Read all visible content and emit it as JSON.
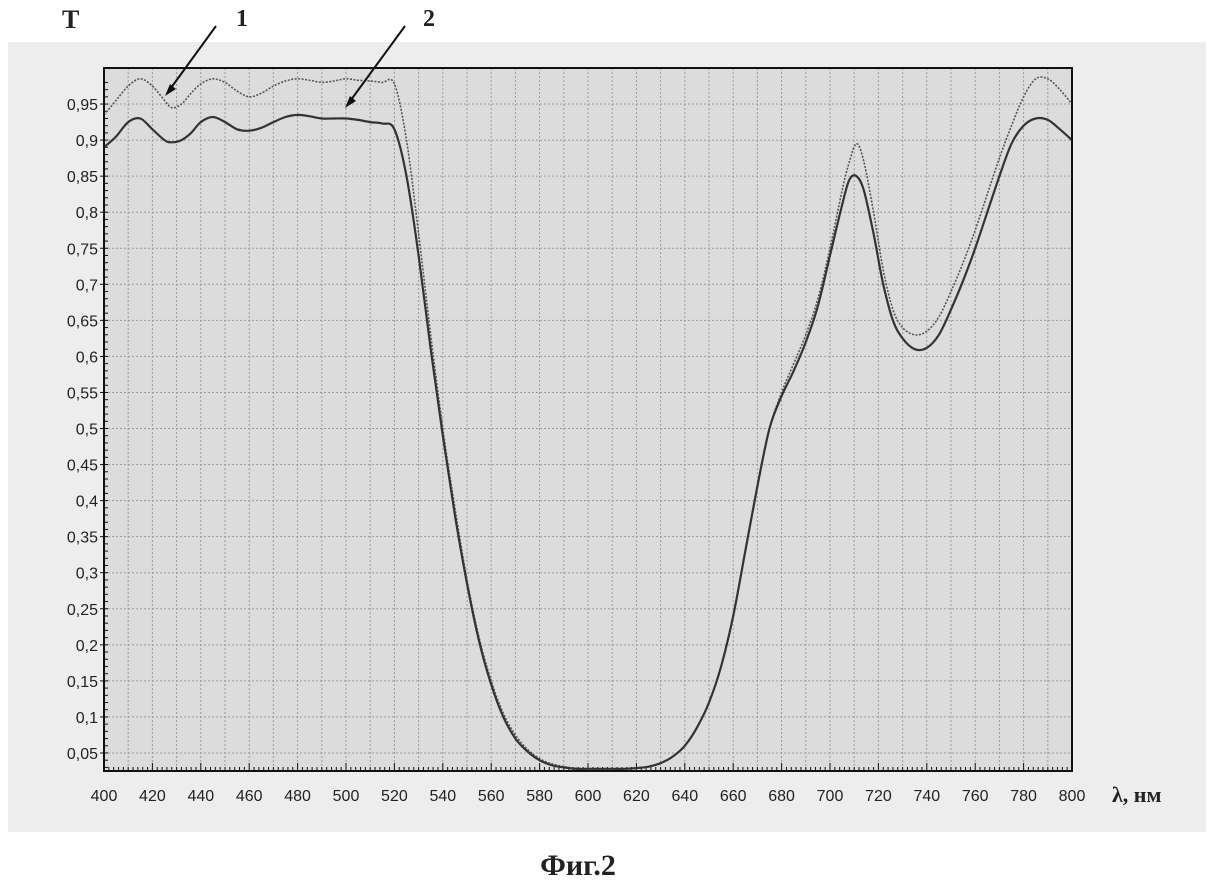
{
  "chart_data": {
    "type": "line",
    "ylabel": "T",
    "xlabel": "λ, нм",
    "caption": "Фиг.2",
    "xlim": [
      400,
      800
    ],
    "ylim": [
      0.025,
      1.0
    ],
    "xticks": [
      "400",
      "420",
      "440",
      "460",
      "480",
      "500",
      "520",
      "540",
      "560",
      "580",
      "600",
      "620",
      "640",
      "660",
      "680",
      "700",
      "720",
      "740",
      "760",
      "780",
      "800"
    ],
    "yticks": [
      "0,05",
      "0,1",
      "0,15",
      "0,2",
      "0,25",
      "0,3",
      "0,35",
      "0,4",
      "0,45",
      "0,5",
      "0,55",
      "0,6",
      "0,65",
      "0,7",
      "0,75",
      "0,8",
      "0,85",
      "0,9",
      "0,95"
    ],
    "grid": true,
    "series": [
      {
        "name": "1",
        "x": [
          400,
          405,
          410,
          415,
          420,
          425,
          428,
          432,
          436,
          440,
          445,
          450,
          455,
          460,
          465,
          470,
          475,
          480,
          485,
          490,
          495,
          500,
          505,
          510,
          515,
          520,
          525,
          530,
          535,
          540,
          545,
          550,
          555,
          560,
          565,
          570,
          575,
          580,
          585,
          590,
          595,
          600,
          605,
          610,
          615,
          620,
          625,
          630,
          635,
          640,
          645,
          650,
          655,
          660,
          665,
          670,
          675,
          680,
          685,
          690,
          695,
          700,
          705,
          708,
          711,
          714,
          718,
          722,
          726,
          730,
          735,
          740,
          745,
          750,
          755,
          760,
          765,
          770,
          775,
          780,
          785,
          790,
          795,
          800
        ],
        "y": [
          0.935,
          0.955,
          0.975,
          0.985,
          0.975,
          0.955,
          0.945,
          0.95,
          0.965,
          0.978,
          0.985,
          0.98,
          0.968,
          0.96,
          0.965,
          0.975,
          0.982,
          0.985,
          0.983,
          0.98,
          0.982,
          0.985,
          0.983,
          0.982,
          0.98,
          0.978,
          0.9,
          0.77,
          0.63,
          0.5,
          0.39,
          0.29,
          0.21,
          0.15,
          0.105,
          0.075,
          0.055,
          0.042,
          0.035,
          0.031,
          0.029,
          0.028,
          0.028,
          0.028,
          0.028,
          0.029,
          0.031,
          0.036,
          0.045,
          0.06,
          0.085,
          0.12,
          0.17,
          0.24,
          0.33,
          0.42,
          0.5,
          0.55,
          0.59,
          0.63,
          0.68,
          0.75,
          0.83,
          0.87,
          0.895,
          0.87,
          0.8,
          0.72,
          0.665,
          0.64,
          0.63,
          0.635,
          0.655,
          0.69,
          0.73,
          0.775,
          0.825,
          0.875,
          0.92,
          0.96,
          0.985,
          0.985,
          0.97,
          0.95
        ]
      },
      {
        "name": "2",
        "x": [
          400,
          405,
          410,
          415,
          420,
          425,
          428,
          432,
          436,
          440,
          445,
          450,
          455,
          460,
          465,
          470,
          475,
          480,
          485,
          490,
          495,
          500,
          505,
          510,
          515,
          520,
          525,
          530,
          535,
          540,
          545,
          550,
          555,
          560,
          565,
          570,
          575,
          580,
          585,
          590,
          595,
          600,
          605,
          610,
          615,
          620,
          625,
          630,
          635,
          640,
          645,
          650,
          655,
          660,
          665,
          670,
          675,
          680,
          685,
          690,
          695,
          700,
          705,
          708,
          711,
          714,
          718,
          722,
          726,
          730,
          735,
          740,
          745,
          750,
          755,
          760,
          765,
          770,
          775,
          780,
          785,
          790,
          795,
          800
        ],
        "y": [
          0.89,
          0.905,
          0.925,
          0.93,
          0.915,
          0.9,
          0.897,
          0.9,
          0.91,
          0.925,
          0.932,
          0.925,
          0.915,
          0.913,
          0.917,
          0.925,
          0.932,
          0.935,
          0.933,
          0.93,
          0.93,
          0.93,
          0.928,
          0.925,
          0.923,
          0.915,
          0.85,
          0.74,
          0.61,
          0.49,
          0.38,
          0.285,
          0.205,
          0.145,
          0.1,
          0.07,
          0.052,
          0.04,
          0.033,
          0.03,
          0.028,
          0.028,
          0.028,
          0.028,
          0.028,
          0.029,
          0.031,
          0.036,
          0.045,
          0.06,
          0.085,
          0.12,
          0.17,
          0.24,
          0.33,
          0.42,
          0.5,
          0.545,
          0.58,
          0.62,
          0.67,
          0.74,
          0.81,
          0.845,
          0.85,
          0.83,
          0.77,
          0.7,
          0.65,
          0.625,
          0.61,
          0.612,
          0.63,
          0.665,
          0.705,
          0.75,
          0.8,
          0.85,
          0.895,
          0.92,
          0.93,
          0.928,
          0.915,
          0.9
        ]
      }
    ],
    "colors": {
      "curve1": "#555555",
      "curve2": "#333333",
      "plot_bg": "#dcdcdc",
      "grid": "#9a9a9a"
    }
  }
}
